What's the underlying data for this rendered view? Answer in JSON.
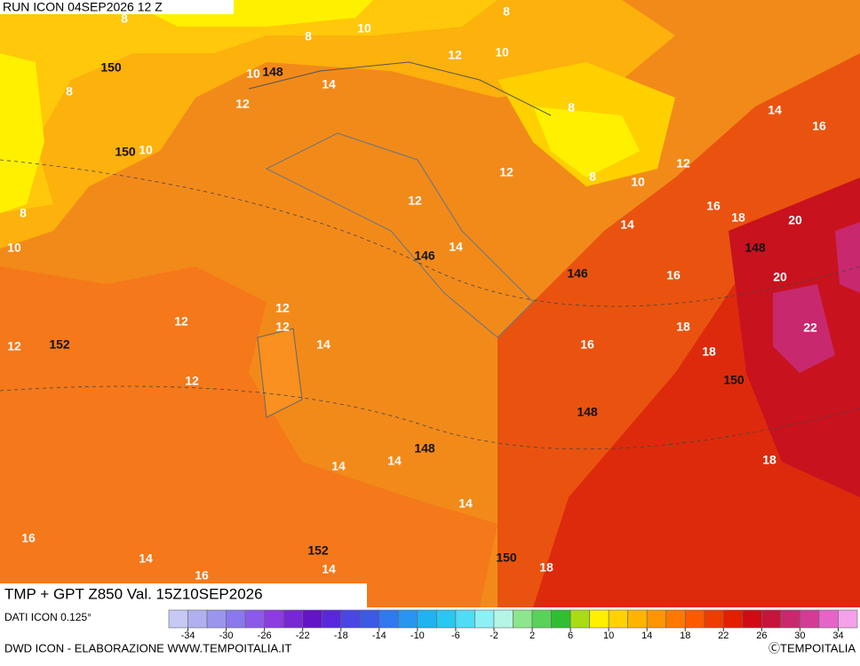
{
  "header": {
    "run": "RUN ICON 04SEP2026 12 Z"
  },
  "map": {
    "title": "TMP + GPT Z850 Val. 15Z10SEP2026",
    "temperature_labels": [
      8,
      8,
      8,
      10,
      10,
      12,
      10,
      14,
      8,
      12,
      8,
      14,
      16,
      10,
      12,
      12,
      8,
      10,
      12,
      8,
      16,
      18,
      20,
      10,
      14,
      16,
      20,
      14,
      12,
      12,
      12,
      14,
      12,
      18,
      22,
      16,
      18,
      12,
      14,
      14,
      18,
      14,
      16,
      14,
      16,
      14,
      18
    ],
    "height_labels": [
      150,
      148,
      150,
      148,
      146,
      146,
      152,
      150,
      148,
      148,
      152,
      150
    ]
  },
  "legend": {
    "source": "DATI ICON 0.125°",
    "colors": [
      "#c8c8f5",
      "#b0b0f0",
      "#9a96ee",
      "#8a78ec",
      "#8c5ae8",
      "#8c3ce0",
      "#7828d2",
      "#6414c8",
      "#5a28dc",
      "#4a46e6",
      "#3c5ae6",
      "#3278f0",
      "#2896f0",
      "#1eb4f0",
      "#28c8f0",
      "#50dcf5",
      "#8cf0f5",
      "#b4f5e6",
      "#8ce68c",
      "#5ad25a",
      "#32be32",
      "#aadc14",
      "#fff000",
      "#ffd200",
      "#ffb400",
      "#ff9600",
      "#ff7800",
      "#ff5a00",
      "#f03c00",
      "#e61e00",
      "#d20a14",
      "#c8143c",
      "#c8286e",
      "#d23c96",
      "#e664c8",
      "#f5a0eb"
    ],
    "ticks": [
      -34,
      -30,
      -26,
      -22,
      -18,
      -14,
      -10,
      -6,
      -2,
      2,
      6,
      10,
      14,
      18,
      22,
      26,
      30,
      34
    ]
  },
  "footer": {
    "credit": "DWD ICON - ELABORAZIONE WWW.TEMPOITALIA.IT",
    "copyright": "ⒸTEMPOITALIA"
  }
}
